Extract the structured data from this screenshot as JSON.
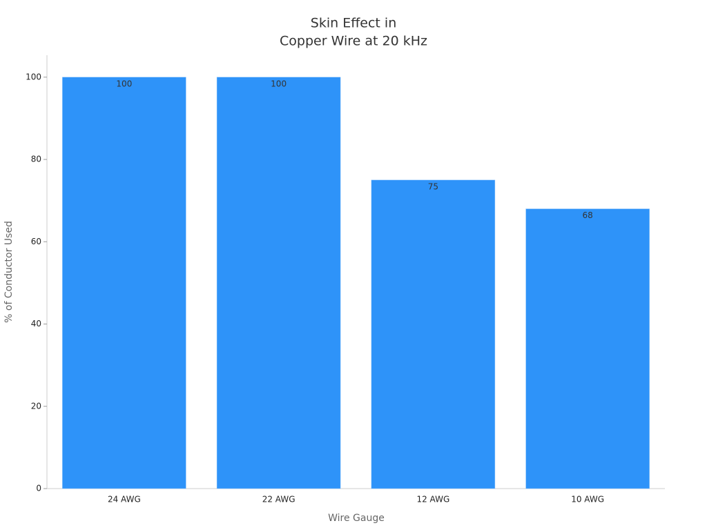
{
  "chart_data": {
    "type": "bar",
    "title": [
      "Skin Effect in",
      "Copper Wire at 20 kHz"
    ],
    "xlabel": "Wire Gauge",
    "ylabel": "% of Conductor Used",
    "categories": [
      "24 AWG",
      "22 AWG",
      "12 AWG",
      "10 AWG"
    ],
    "values": [
      100,
      100,
      75,
      68
    ],
    "color": "#2e93f9",
    "ylim": [
      0,
      105
    ],
    "yticks": [
      0,
      20,
      40,
      60,
      80,
      100
    ],
    "grid": false
  }
}
